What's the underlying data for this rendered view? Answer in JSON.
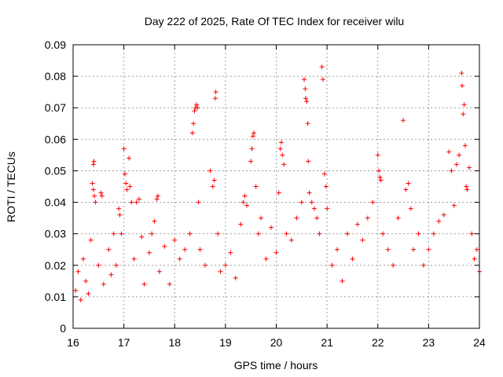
{
  "chart_data": {
    "type": "scatter",
    "title": "Day 222 of 2025, Rate Of TEC Index for receiver wilu",
    "xlabel": "GPS time / hours",
    "ylabel": "ROTI / TECUs",
    "xlim": [
      16,
      24
    ],
    "ylim": [
      0,
      0.09
    ],
    "x_ticks": [
      16,
      17,
      18,
      19,
      20,
      21,
      22,
      23,
      24
    ],
    "x_tick_labels": [
      "16",
      "17",
      "18",
      "19",
      "20",
      "21",
      "22",
      "23",
      "24"
    ],
    "y_ticks": [
      0,
      0.01,
      0.02,
      0.03,
      0.04,
      0.05,
      0.06,
      0.07,
      0.08,
      0.09
    ],
    "y_tick_labels": [
      "0",
      "0.01",
      "0.02",
      "0.03",
      "0.04",
      "0.05",
      "0.06",
      "0.07",
      "0.08",
      "0.09"
    ],
    "grid": true,
    "marker": "plus",
    "color": "#ff0000",
    "series": [
      {
        "points": [
          [
            16.05,
            0.012
          ],
          [
            16.1,
            0.018
          ],
          [
            16.15,
            0.009
          ],
          [
            16.2,
            0.022
          ],
          [
            16.25,
            0.015
          ],
          [
            16.3,
            0.011
          ],
          [
            16.35,
            0.028
          ],
          [
            16.38,
            0.046
          ],
          [
            16.4,
            0.044
          ],
          [
            16.42,
            0.042
          ],
          [
            16.44,
            0.04
          ],
          [
            16.4,
            0.052
          ],
          [
            16.41,
            0.053
          ],
          [
            16.5,
            0.02
          ],
          [
            16.55,
            0.043
          ],
          [
            16.57,
            0.042
          ],
          [
            16.6,
            0.014
          ],
          [
            16.7,
            0.025
          ],
          [
            16.75,
            0.017
          ],
          [
            16.8,
            0.03
          ],
          [
            16.85,
            0.02
          ],
          [
            16.9,
            0.038
          ],
          [
            16.92,
            0.036
          ],
          [
            16.95,
            0.03
          ],
          [
            17.0,
            0.057
          ],
          [
            17.02,
            0.049
          ],
          [
            17.04,
            0.046
          ],
          [
            17.06,
            0.044
          ],
          [
            17.1,
            0.054
          ],
          [
            17.12,
            0.045
          ],
          [
            17.15,
            0.04
          ],
          [
            17.2,
            0.022
          ],
          [
            17.25,
            0.04
          ],
          [
            17.3,
            0.041
          ],
          [
            17.35,
            0.029
          ],
          [
            17.4,
            0.014
          ],
          [
            17.5,
            0.024
          ],
          [
            17.55,
            0.03
          ],
          [
            17.6,
            0.034
          ],
          [
            17.65,
            0.041
          ],
          [
            17.67,
            0.042
          ],
          [
            17.7,
            0.018
          ],
          [
            17.8,
            0.026
          ],
          [
            17.9,
            0.014
          ],
          [
            18.0,
            0.028
          ],
          [
            18.1,
            0.022
          ],
          [
            18.2,
            0.025
          ],
          [
            18.3,
            0.03
          ],
          [
            18.35,
            0.062
          ],
          [
            18.37,
            0.065
          ],
          [
            18.39,
            0.069
          ],
          [
            18.41,
            0.07
          ],
          [
            18.43,
            0.071
          ],
          [
            18.45,
            0.07
          ],
          [
            18.47,
            0.04
          ],
          [
            18.5,
            0.025
          ],
          [
            18.6,
            0.02
          ],
          [
            18.7,
            0.05
          ],
          [
            18.75,
            0.045
          ],
          [
            18.78,
            0.047
          ],
          [
            18.8,
            0.073
          ],
          [
            18.81,
            0.075
          ],
          [
            18.85,
            0.03
          ],
          [
            18.9,
            0.018
          ],
          [
            19.0,
            0.02
          ],
          [
            19.1,
            0.024
          ],
          [
            19.2,
            0.016
          ],
          [
            19.3,
            0.033
          ],
          [
            19.35,
            0.04
          ],
          [
            19.38,
            0.042
          ],
          [
            19.42,
            0.039
          ],
          [
            19.5,
            0.053
          ],
          [
            19.52,
            0.057
          ],
          [
            19.54,
            0.061
          ],
          [
            19.56,
            0.062
          ],
          [
            19.6,
            0.045
          ],
          [
            19.65,
            0.03
          ],
          [
            19.7,
            0.035
          ],
          [
            19.8,
            0.022
          ],
          [
            19.9,
            0.032
          ],
          [
            20.0,
            0.024
          ],
          [
            20.05,
            0.043
          ],
          [
            20.08,
            0.057
          ],
          [
            20.1,
            0.059
          ],
          [
            20.12,
            0.055
          ],
          [
            20.15,
            0.052
          ],
          [
            20.2,
            0.03
          ],
          [
            20.3,
            0.028
          ],
          [
            20.4,
            0.035
          ],
          [
            20.5,
            0.04
          ],
          [
            20.55,
            0.079
          ],
          [
            20.57,
            0.076
          ],
          [
            20.58,
            0.073
          ],
          [
            20.6,
            0.072
          ],
          [
            20.62,
            0.065
          ],
          [
            20.63,
            0.053
          ],
          [
            20.65,
            0.043
          ],
          [
            20.7,
            0.04
          ],
          [
            20.75,
            0.038
          ],
          [
            20.8,
            0.035
          ],
          [
            20.85,
            0.03
          ],
          [
            20.9,
            0.083
          ],
          [
            20.92,
            0.079
          ],
          [
            20.95,
            0.049
          ],
          [
            20.98,
            0.045
          ],
          [
            21.0,
            0.038
          ],
          [
            21.1,
            0.02
          ],
          [
            21.2,
            0.025
          ],
          [
            21.3,
            0.015
          ],
          [
            21.4,
            0.03
          ],
          [
            21.5,
            0.022
          ],
          [
            21.6,
            0.033
          ],
          [
            21.7,
            0.028
          ],
          [
            21.8,
            0.035
          ],
          [
            21.9,
            0.04
          ],
          [
            22.0,
            0.055
          ],
          [
            22.02,
            0.05
          ],
          [
            22.04,
            0.048
          ],
          [
            22.06,
            0.047
          ],
          [
            22.1,
            0.03
          ],
          [
            22.2,
            0.025
          ],
          [
            22.3,
            0.02
          ],
          [
            22.4,
            0.035
          ],
          [
            22.5,
            0.066
          ],
          [
            22.55,
            0.044
          ],
          [
            22.6,
            0.046
          ],
          [
            22.65,
            0.038
          ],
          [
            22.7,
            0.025
          ],
          [
            22.8,
            0.03
          ],
          [
            22.9,
            0.02
          ],
          [
            23.0,
            0.025
          ],
          [
            23.1,
            0.03
          ],
          [
            23.2,
            0.034
          ],
          [
            23.3,
            0.036
          ],
          [
            23.4,
            0.056
          ],
          [
            23.45,
            0.05
          ],
          [
            23.5,
            0.039
          ],
          [
            23.55,
            0.052
          ],
          [
            23.6,
            0.055
          ],
          [
            23.65,
            0.081
          ],
          [
            23.66,
            0.077
          ],
          [
            23.68,
            0.068
          ],
          [
            23.7,
            0.071
          ],
          [
            23.72,
            0.058
          ],
          [
            23.74,
            0.045
          ],
          [
            23.76,
            0.044
          ],
          [
            23.8,
            0.051
          ],
          [
            23.85,
            0.03
          ],
          [
            23.9,
            0.022
          ],
          [
            23.95,
            0.025
          ],
          [
            24.0,
            0.018
          ]
        ]
      }
    ]
  }
}
